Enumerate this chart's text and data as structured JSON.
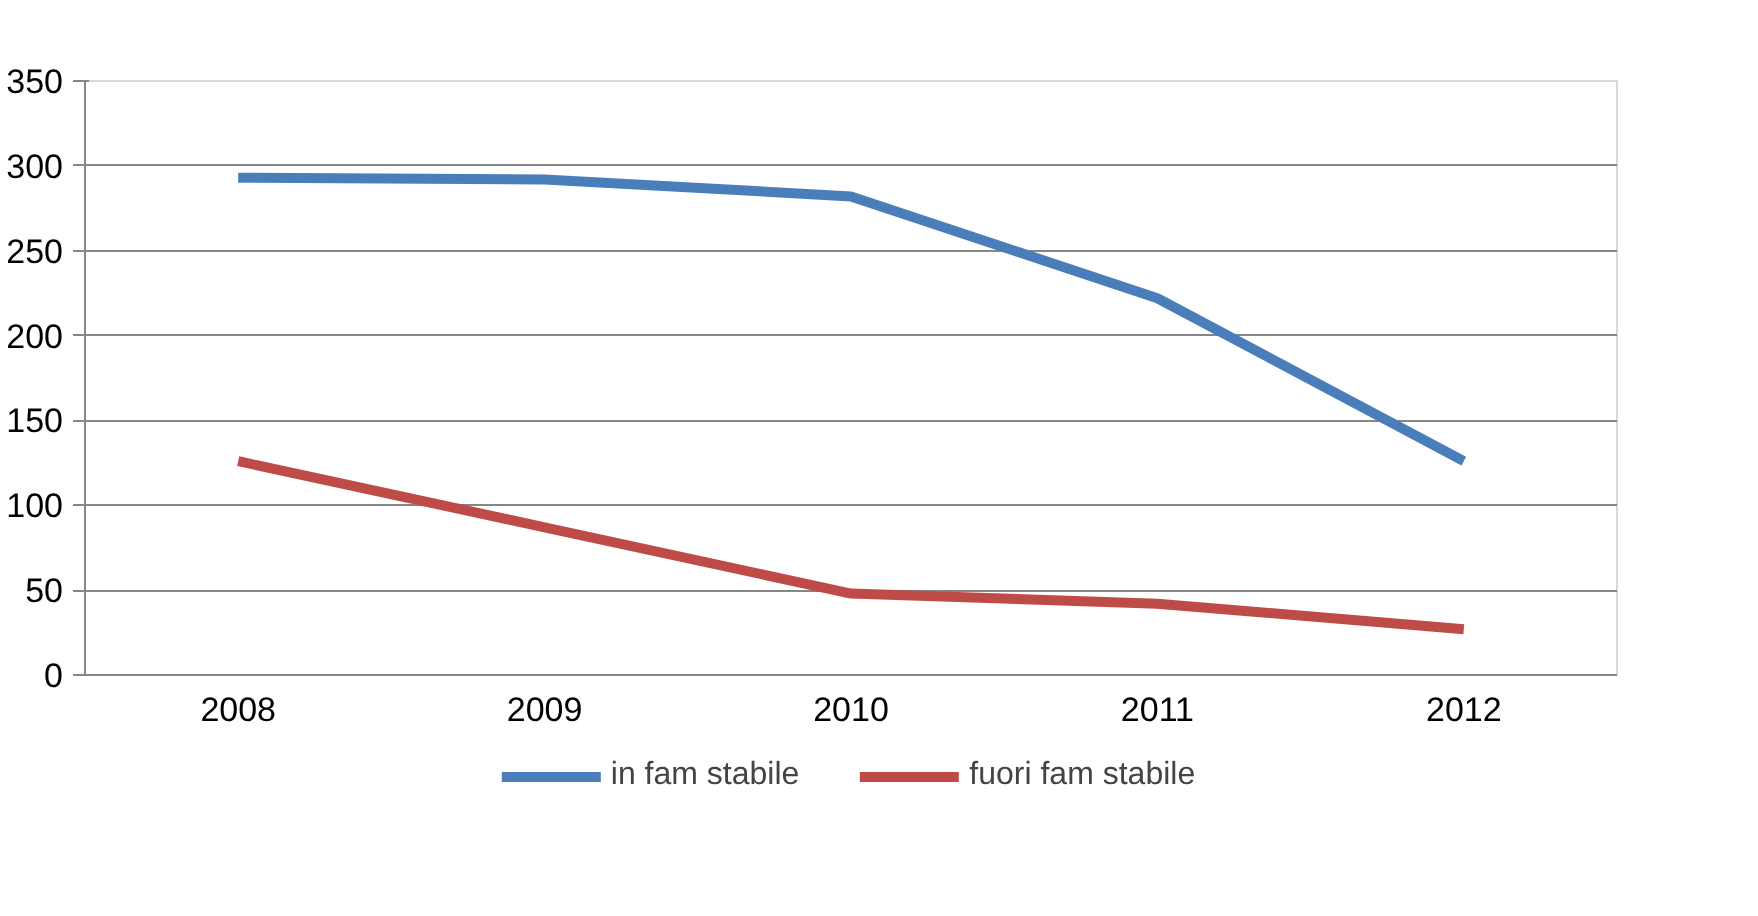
{
  "chart_data": {
    "type": "line",
    "categories": [
      "2008",
      "2009",
      "2010",
      "2011",
      "2012"
    ],
    "series": [
      {
        "name": "in fam stabile",
        "color": "#4a7ebb",
        "values": [
          293,
          292,
          282,
          222,
          126
        ]
      },
      {
        "name": "fuori fam stabile",
        "color": "#be4b48",
        "values": [
          126,
          87,
          48,
          42,
          27
        ]
      }
    ],
    "ylim": [
      0,
      350
    ],
    "yticks": [
      0,
      50,
      100,
      150,
      200,
      250,
      300,
      350
    ],
    "grid": "y",
    "legend": "bottom",
    "marker": "none",
    "line_style": "solid"
  }
}
